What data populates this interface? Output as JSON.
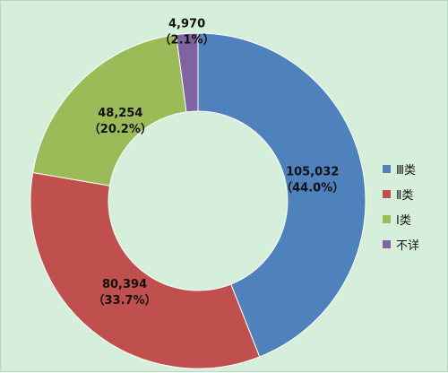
{
  "chart_data": {
    "type": "pie",
    "donut": true,
    "title": "",
    "slices": [
      {
        "name": "Ⅲ类",
        "value": 105032,
        "value_label": "105,032",
        "percent_label": "（44.0%）",
        "color": "#4f81bd"
      },
      {
        "name": "Ⅱ类",
        "value": 80394,
        "value_label": "80,394",
        "percent_label": "（33.7%）",
        "color": "#c0504d"
      },
      {
        "name": "Ⅰ类",
        "value": 48254,
        "value_label": "48,254",
        "percent_label": "（20.2%）",
        "color": "#9bbb59"
      },
      {
        "name": "不详",
        "value": 4970,
        "value_label": "4,970",
        "percent_label": "（2.1%）",
        "color": "#8064a2"
      }
    ],
    "legend_position": "right"
  },
  "colors": {
    "background": "#d5efdb",
    "hole": "#d5efdb"
  }
}
